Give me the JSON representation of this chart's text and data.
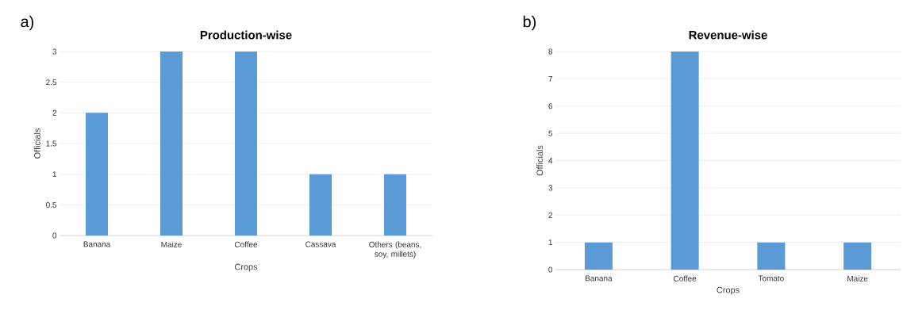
{
  "chart_data": [
    {
      "type": "bar",
      "title": "Production-wise",
      "xlabel": "Crops",
      "ylabel": "Officials",
      "annotations": [
        "a)"
      ],
      "categories": [
        "Banana",
        "Maize",
        "Coffee",
        "Cassava",
        "Others (beans, soy, millets)"
      ],
      "values": [
        2,
        3,
        3,
        1,
        1
      ],
      "color": "#5b9bd5",
      "ylim": [
        0,
        3
      ],
      "yticks": [
        0,
        0.5,
        1,
        1.5,
        2,
        2.5,
        3
      ],
      "grid": "y"
    },
    {
      "type": "bar",
      "title": "Revenue-wise",
      "xlabel": "Crops",
      "ylabel": "Officials",
      "annotations": [
        "b)"
      ],
      "categories": [
        "Banana",
        "Coffee",
        "Tomato",
        "Maize"
      ],
      "values": [
        1,
        8,
        1,
        1
      ],
      "color": "#5b9bd5",
      "ylim": [
        0,
        8
      ],
      "yticks": [
        0,
        1,
        2,
        3,
        4,
        5,
        6,
        7,
        8
      ],
      "grid": "y"
    }
  ]
}
